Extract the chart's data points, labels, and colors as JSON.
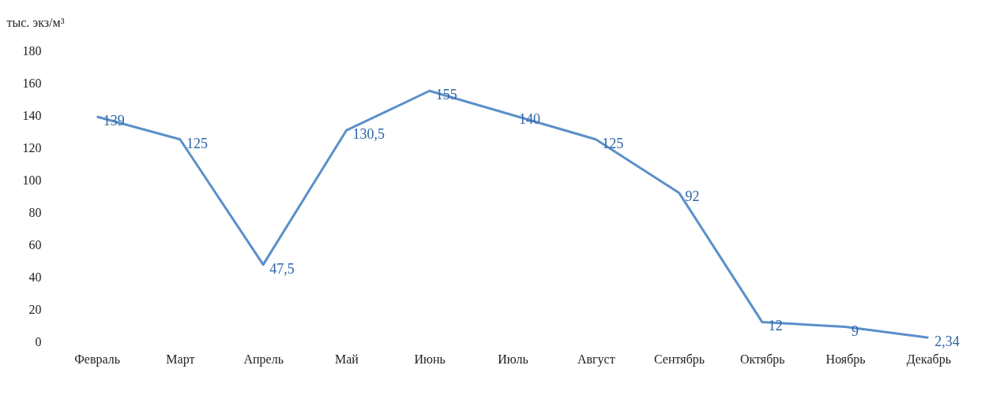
{
  "chart_data": {
    "type": "line",
    "ylabel": "тыс. экз/м³",
    "categories": [
      "Февраль",
      "Март",
      "Апрель",
      "Май",
      "Июнь",
      "Июль",
      "Август",
      "Сентябрь",
      "Октябрь",
      "Ноябрь",
      "Декабрь"
    ],
    "series": [
      {
        "color": "#5b8fca",
        "values": [
          139,
          125,
          47.5,
          130.5,
          155,
          140,
          125,
          92,
          12,
          9,
          2.34
        ]
      }
    ],
    "value_labels": [
      "139",
      "125",
      "47,5",
      "130,5",
      "155",
      "140",
      "125",
      "92",
      "12",
      "9",
      "2,34"
    ],
    "ylim": [
      0,
      180
    ],
    "yticks": [
      0,
      20,
      40,
      60,
      80,
      100,
      120,
      140,
      160,
      180
    ],
    "grid": false,
    "marker": "none",
    "line_style": "solid"
  }
}
